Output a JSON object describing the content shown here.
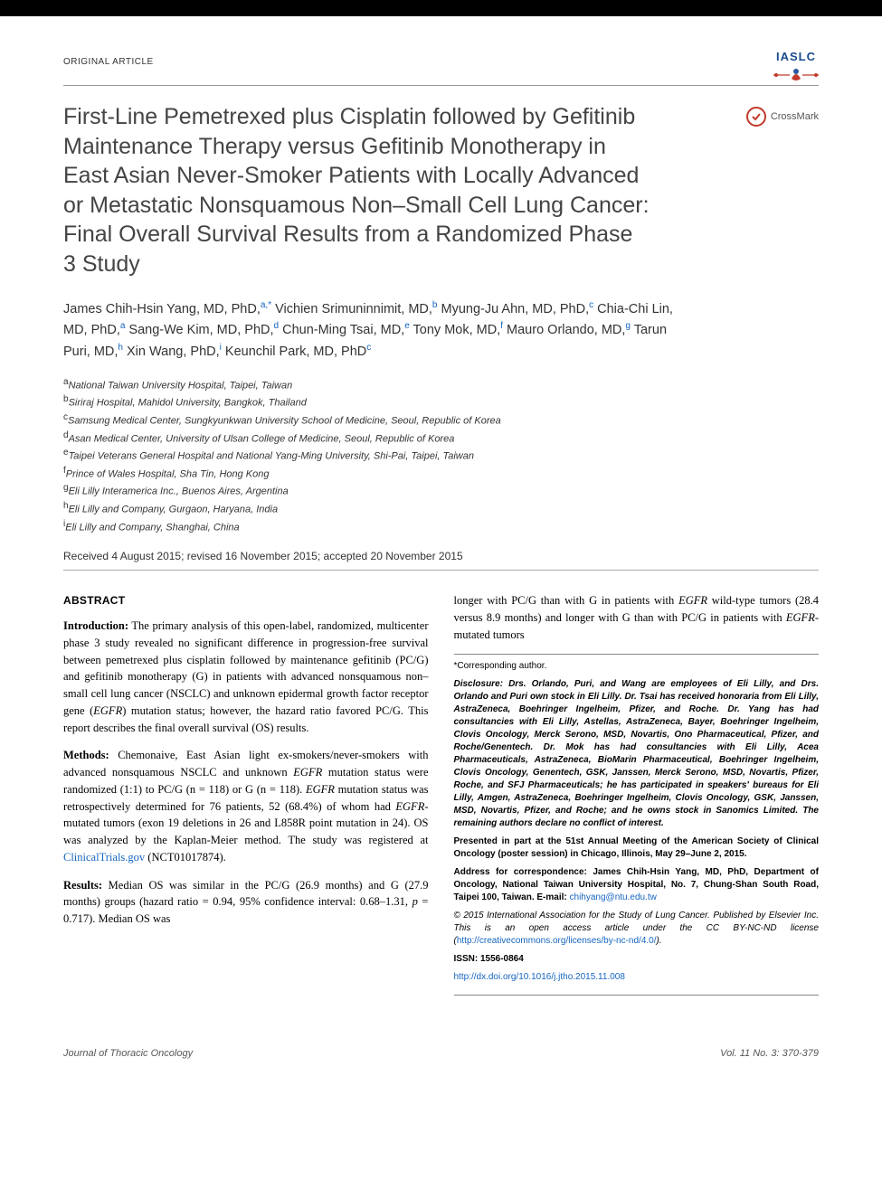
{
  "article_type": "ORIGINAL ARTICLE",
  "logo": {
    "iaslc": "IASLC",
    "crossmark": "CrossMark"
  },
  "title": "First-Line Pemetrexed plus Cisplatin followed by Gefitinib Maintenance Therapy versus Gefitinib Monotherapy in East Asian Never-Smoker Patients with Locally Advanced or Metastatic Nonsquamous Non–Small Cell Lung Cancer: Final Overall Survival Results from a Randomized Phase 3 Study",
  "authors_html": "James Chih-Hsin Yang, MD, PhD,<span class='sup'>a,*</span> Vichien Srimuninnimit, MD,<span class='sup'>b</span> Myung-Ju Ahn, MD, PhD,<span class='sup'>c</span> Chia-Chi Lin, MD, PhD,<span class='sup'>a</span> Sang-We Kim, MD, PhD,<span class='sup'>d</span> Chun-Ming Tsai, MD,<span class='sup'>e</span> Tony Mok, MD,<span class='sup'>f</span> Mauro Orlando, MD,<span class='sup'>g</span> Tarun Puri, MD,<span class='sup'>h</span> Xin Wang, PhD,<span class='sup'>i</span> Keunchil Park, MD, PhD<span class='sup'>c</span>",
  "affiliations": [
    {
      "sup": "a",
      "text": "National Taiwan University Hospital, Taipei, Taiwan"
    },
    {
      "sup": "b",
      "text": "Siriraj Hospital, Mahidol University, Bangkok, Thailand"
    },
    {
      "sup": "c",
      "text": "Samsung Medical Center, Sungkyunkwan University School of Medicine, Seoul, Republic of Korea"
    },
    {
      "sup": "d",
      "text": "Asan Medical Center, University of Ulsan College of Medicine, Seoul, Republic of Korea"
    },
    {
      "sup": "e",
      "text": "Taipei Veterans General Hospital and National Yang-Ming University, Shi-Pai, Taipei, Taiwan"
    },
    {
      "sup": "f",
      "text": "Prince of Wales Hospital, Sha Tin, Hong Kong"
    },
    {
      "sup": "g",
      "text": "Eli Lilly Interamerica Inc., Buenos Aires, Argentina"
    },
    {
      "sup": "h",
      "text": "Eli Lilly and Company, Gurgaon, Haryana, India"
    },
    {
      "sup": "i",
      "text": "Eli Lilly and Company, Shanghai, China"
    }
  ],
  "dates": "Received 4 August 2015; revised 16 November 2015; accepted 20 November 2015",
  "abstract_heading": "ABSTRACT",
  "abstract": {
    "introduction": "<strong>Introduction:</strong> The primary analysis of this open-label, randomized, multicenter phase 3 study revealed no significant difference in progression-free survival between pemetrexed plus cisplatin followed by maintenance gefitinib (PC/G) and gefitinib monotherapy (G) in patients with advanced nonsquamous non–small cell lung cancer (NSCLC) and unknown epidermal growth factor receptor gene (<em>EGFR</em>) mutation status; however, the hazard ratio favored PC/G. This report describes the final overall survival (OS) results.",
    "methods": "<strong>Methods:</strong> Chemonaive, East Asian light ex-smokers/never-smokers with advanced nonsquamous NSCLC and unknown <em>EGFR</em> mutation status were randomized (1:1) to PC/G (n = 118) or G (n = 118). <em>EGFR</em> mutation status was retrospectively determined for 76 patients, 52 (68.4%) of whom had <em>EGFR</em>-mutated tumors (exon 19 deletions in 26 and L858R point mutation in 24). OS was analyzed by the Kaplan-Meier method. The study was registered at <a class='link' data-name='clinicaltrials-link' data-interactable='true'>ClinicalTrials.gov</a> (NCT01017874).",
    "results": "<strong>Results:</strong> Median OS was similar in the PC/G (26.9 months) and G (27.9 months) groups (hazard ratio = 0.94, 95% confidence interval: 0.68–1.31, <em>p</em> = 0.717). Median OS was",
    "results_cont": "longer with PC/G than with G in patients with <em>EGFR</em> wild-type tumors (28.4 versus 8.9 months) and longer with G than with PC/G in patients with <em>EGFR</em>-mutated tumors"
  },
  "infobox": {
    "corresponding": "*Corresponding author.",
    "disclosure": "Disclosure: Drs. Orlando, Puri, and Wang are employees of Eli Lilly, and Drs. Orlando and Puri own stock in Eli Lilly. Dr. Tsai has received honoraria from Eli Lilly, AstraZeneca, Boehringer Ingelheim, Pfizer, and Roche. Dr. Yang has had consultancies with Eli Lilly, Astellas, AstraZeneca, Bayer, Boehringer Ingelheim, Clovis Oncology, Merck Serono, MSD, Novartis, Ono Pharmaceutical, Pfizer, and Roche/Genentech. Dr. Mok has had consultancies with Eli Lilly, Acea Pharmaceuticals, AstraZeneca, BioMarin Pharmaceutical, Boehringer Ingelheim, Clovis Oncology, Genentech, GSK, Janssen, Merck Serono, MSD, Novartis, Pfizer, Roche, and SFJ Pharmaceuticals; he has participated in speakers' bureaus for Eli Lilly, Amgen, AstraZeneca, Boehringer Ingelheim, Clovis Oncology, GSK, Janssen, MSD, Novartis, Pfizer, and Roche; and he owns stock in Sanomics Limited. The remaining authors declare no conflict of interest.",
    "presented": "Presented in part at the 51st Annual Meeting of the American Society of Clinical Oncology (poster session) in Chicago, Illinois, May 29–June 2, 2015.",
    "address": "Address for correspondence: James Chih-Hsin Yang, MD, PhD, Department of Oncology, National Taiwan University Hospital, No. 7, Chung-Shan South Road, Taipei 100, Taiwan. E-mail: ",
    "email": "chihyang@ntu.edu.tw",
    "copyright": "© 2015 International Association for the Study of Lung Cancer. Published by Elsevier Inc. This is an open access article under the CC BY-NC-ND license (",
    "license_url": "http://creativecommons.org/licenses/by-nc-nd/4.0/",
    "license_close": ").",
    "issn": "ISSN: 1556-0864",
    "doi": "http://dx.doi.org/10.1016/j.jtho.2015.11.008"
  },
  "footer": {
    "journal": "Journal of Thoracic Oncology",
    "issue": "Vol. 11 No. 3: 370-379"
  },
  "colors": {
    "link": "#1565c0",
    "iaslc": "#1a4b8c",
    "crossmark": "#c0392b"
  }
}
